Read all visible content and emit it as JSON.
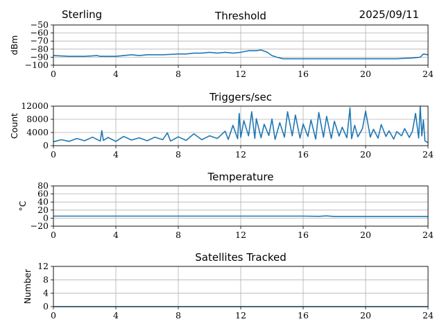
{
  "header": {
    "station": "Sterling",
    "date": "2025/09/11"
  },
  "colors": {
    "line": "#1f77b4",
    "grid": "#b0b0b0",
    "axis": "#000000"
  },
  "chart_data": [
    {
      "type": "line",
      "title": "Threshold",
      "xlabel": "",
      "ylabel": "dBm",
      "xlim": [
        0,
        24
      ],
      "ylim": [
        -100,
        -50
      ],
      "xticks": [
        "0",
        "4",
        "8",
        "12",
        "16",
        "20",
        "24"
      ],
      "yticks": [
        "−50",
        "−60",
        "−70",
        "−80",
        "−90",
        "−100"
      ],
      "ytick_values": [
        -50,
        -60,
        -70,
        -80,
        -90,
        -100
      ],
      "grid": true,
      "series": [
        {
          "name": "threshold",
          "x": [
            0,
            1,
            2,
            2.8,
            3,
            3.5,
            4,
            4.5,
            5,
            5.5,
            6,
            7,
            8,
            8.5,
            9,
            9.5,
            10,
            10.5,
            11,
            11.5,
            12,
            12.5,
            13,
            13.3,
            13.7,
            14,
            14.3,
            14.7,
            15,
            16,
            17,
            18,
            19,
            20,
            21,
            22,
            23,
            23.5,
            23.7,
            24
          ],
          "values": [
            -88,
            -89,
            -89,
            -88,
            -89,
            -89,
            -89,
            -88,
            -87,
            -88,
            -87,
            -87,
            -86,
            -86,
            -85,
            -85,
            -84,
            -85,
            -84,
            -85,
            -84,
            -82,
            -82,
            -81,
            -84,
            -88,
            -90,
            -92,
            -92,
            -92,
            -92,
            -92,
            -92,
            -92,
            -92,
            -92,
            -91,
            -90,
            -86,
            -87
          ]
        }
      ]
    },
    {
      "type": "line",
      "title": "Triggers/sec",
      "xlabel": "",
      "ylabel": "Count",
      "xlim": [
        0,
        24
      ],
      "ylim": [
        0,
        12000
      ],
      "xticks": [
        "0",
        "4",
        "8",
        "12",
        "16",
        "20",
        "24"
      ],
      "yticks": [
        "0",
        "4000",
        "8000",
        "12000"
      ],
      "ytick_values": [
        0,
        4000,
        8000,
        12000
      ],
      "grid": true,
      "series": [
        {
          "name": "triggers",
          "x": [
            0,
            0.5,
            1,
            1.5,
            2,
            2.5,
            3,
            3.1,
            3.2,
            3.5,
            4,
            4.5,
            5,
            5.5,
            6,
            6.5,
            7,
            7.3,
            7.5,
            8,
            8.5,
            9,
            9.5,
            10,
            10.5,
            11,
            11.2,
            11.5,
            11.8,
            11.9,
            12,
            12.2,
            12.5,
            12.7,
            12.9,
            13,
            13.3,
            13.5,
            13.8,
            14,
            14.2,
            14.5,
            14.8,
            15,
            15.3,
            15.5,
            15.8,
            16,
            16.3,
            16.5,
            16.8,
            17,
            17.3,
            17.5,
            17.8,
            18,
            18.3,
            18.5,
            18.8,
            19,
            19.1,
            19.3,
            19.5,
            19.8,
            20,
            20.3,
            20.5,
            20.8,
            21,
            21.3,
            21.5,
            21.8,
            22,
            22.3,
            22.5,
            22.8,
            23,
            23.2,
            23.4,
            23.5,
            23.6,
            23.7,
            23.8,
            24
          ],
          "values": [
            1200,
            1800,
            1300,
            2200,
            1500,
            2600,
            1400,
            4600,
            1600,
            2500,
            1300,
            2800,
            1700,
            2400,
            1500,
            2600,
            1800,
            3900,
            1400,
            2700,
            1600,
            3600,
            1800,
            3000,
            2200,
            4400,
            1900,
            6200,
            2100,
            9800,
            2500,
            7600,
            3000,
            10300,
            2200,
            8200,
            2400,
            6500,
            3100,
            8100,
            1900,
            7000,
            2600,
            10300,
            3000,
            9300,
            2300,
            6600,
            2800,
            7800,
            2000,
            10100,
            2600,
            8900,
            2200,
            7400,
            2900,
            5600,
            2400,
            11500,
            2100,
            6200,
            2700,
            5200,
            10500,
            2600,
            5000,
            2300,
            6400,
            2800,
            4500,
            2000,
            4300,
            3000,
            5200,
            2500,
            4400,
            9800,
            2300,
            12100,
            3000,
            7800,
            1500,
            900
          ]
        }
      ]
    },
    {
      "type": "line",
      "title": "Temperature",
      "xlabel": "",
      "ylabel": "°C",
      "xlim": [
        0,
        24
      ],
      "ylim": [
        -20,
        80
      ],
      "xticks": [
        "0",
        "4",
        "8",
        "12",
        "16",
        "20",
        "24"
      ],
      "yticks": [
        "−20",
        "0",
        "20",
        "40",
        "60",
        "80"
      ],
      "ytick_values": [
        -20,
        0,
        20,
        40,
        60,
        80
      ],
      "grid": true,
      "series": [
        {
          "name": "temperature",
          "x": [
            0,
            4,
            8,
            12,
            16,
            17,
            17.5,
            18,
            20,
            24
          ],
          "values": [
            5,
            5,
            5,
            5,
            5,
            4.5,
            5.5,
            4,
            4,
            4
          ]
        }
      ]
    },
    {
      "type": "line",
      "title": "Satellites Tracked",
      "xlabel": "",
      "ylabel": "Number",
      "xlim": [
        0,
        24
      ],
      "ylim": [
        0,
        12
      ],
      "xticks": [
        "0",
        "4",
        "8",
        "12",
        "16",
        "20",
        "24"
      ],
      "yticks": [
        "0",
        "4",
        "8",
        "12"
      ],
      "ytick_values": [
        0,
        4,
        8,
        12
      ],
      "grid": true,
      "series": [
        {
          "name": "satellites",
          "x": [
            0,
            24
          ],
          "values": [
            0,
            0
          ]
        }
      ]
    }
  ]
}
